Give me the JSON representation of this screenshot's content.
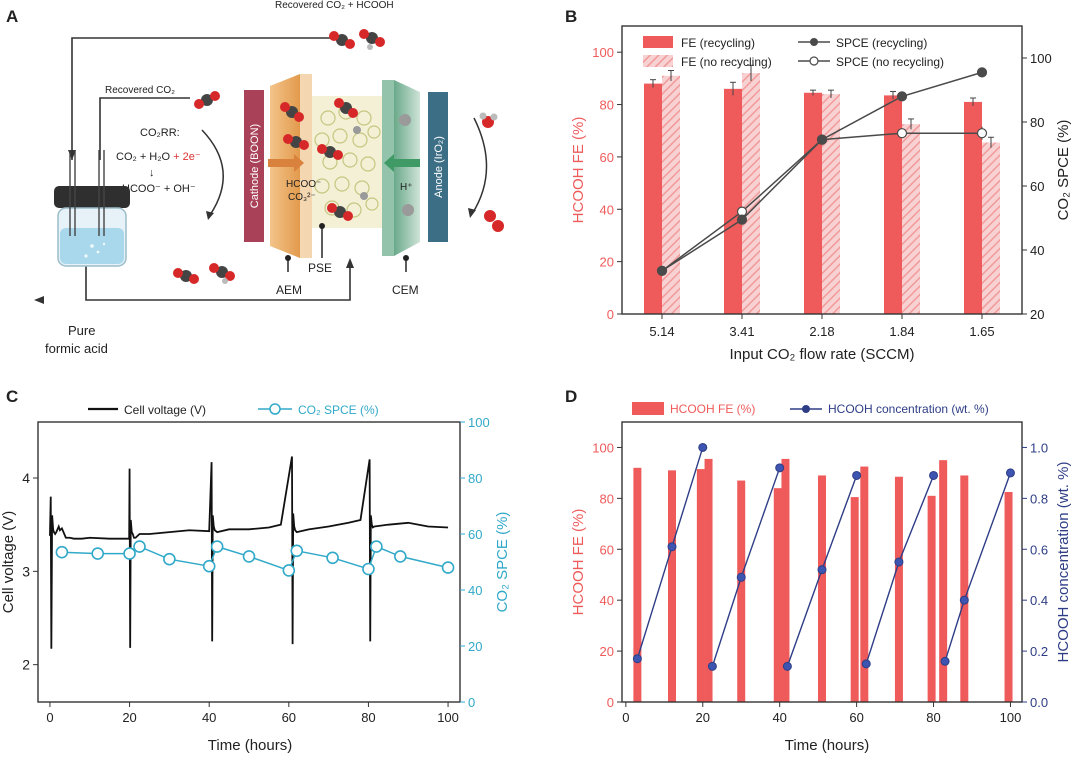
{
  "colors": {
    "red": "#ef5b5b",
    "pink": "#f4a8a8",
    "teal": "#31a9c9",
    "navy": "#2e3d86",
    "grey": "#4a4a4a",
    "cathode": "#a94258",
    "anode": "#3c6f86",
    "orange": "#e9a35a",
    "green": "#5aa36f"
  },
  "panelA": {
    "letter": "A",
    "recovered_co2_hcooh": "Recovered CO₂ + HCOOH",
    "recovered_co2": "Recovered CO₂",
    "co2rr_title": "CO₂RR:",
    "eq_left": "CO₂ + H₂O",
    "eq_plus": " + 2e⁻",
    "eq_arrow": "↓",
    "eq_right": "HCOO⁻ + OH⁻",
    "cathode": "Cathode (BOON)",
    "anode": "Anode (IrO₂)",
    "hcoo": "HCOO⁻",
    "co3": "CO₃²⁻",
    "hplus": "H⁺",
    "aem": "AEM",
    "pse": "PSE",
    "cem": "CEM",
    "pure_line1": "Pure",
    "pure_line2": "formic acid"
  },
  "chart_data": [
    {
      "panel": "B",
      "type": "bar",
      "categories": [
        "5.14",
        "3.41",
        "2.18",
        "1.84",
        "1.65"
      ],
      "xlabel": "Input CO₂ flow rate (SCCM)",
      "ylabel": "HCOOH FE (%)",
      "y2label": "CO₂ SPCE (%)",
      "ylim": [
        0,
        110
      ],
      "y2lim": [
        20,
        110
      ],
      "yticks": [
        "0",
        "20",
        "40",
        "60",
        "80",
        "100"
      ],
      "y2ticks": [
        "20",
        "40",
        "60",
        "80",
        "100"
      ],
      "legend": [
        "FE (recycling)",
        "FE (no recycling)",
        "SPCE (recycling)",
        "SPCE (no recycling)"
      ],
      "legend_position": "top",
      "series": [
        {
          "name": "FE (recycling)",
          "kind": "bar",
          "values": [
            88,
            86,
            84.5,
            83.5,
            81
          ],
          "errors": [
            1.5,
            2.5,
            1,
            1.5,
            1.5
          ]
        },
        {
          "name": "FE (no recycling)",
          "kind": "bar-hatched",
          "values": [
            91,
            92,
            84,
            72.5,
            65.5
          ],
          "errors": [
            2,
            3,
            1.5,
            2,
            2
          ]
        },
        {
          "name": "SPCE (recycling)",
          "kind": "line",
          "axis": "right",
          "values": [
            33.5,
            49.5,
            74.5,
            88,
            95.5
          ],
          "errors": [
            0.5,
            1,
            1,
            1,
            1.5
          ]
        },
        {
          "name": "SPCE (no recycling)",
          "kind": "line",
          "axis": "right",
          "values": [
            33.5,
            52,
            74.5,
            76.5,
            76.5
          ],
          "errors": [
            0.5,
            1,
            1,
            1.5,
            2
          ]
        }
      ]
    },
    {
      "panel": "C",
      "type": "line",
      "xlabel": "Time (hours)",
      "ylabel": "Cell voltage (V)",
      "y2label": "CO₂ SPCE (%)",
      "xlim": [
        -3,
        103
      ],
      "ylim": [
        1.6,
        4.6
      ],
      "y2lim": [
        0,
        100
      ],
      "xticks": [
        "0",
        "20",
        "40",
        "60",
        "80",
        "100"
      ],
      "yticks": [
        "2",
        "3",
        "4"
      ],
      "y2ticks": [
        "0",
        "20",
        "40",
        "60",
        "80",
        "100"
      ],
      "legend": [
        "Cell voltage (V)",
        "CO₂ SPCE (%)"
      ],
      "legend_position": "top",
      "series": [
        {
          "name": "Cell voltage (V)",
          "axis": "left",
          "x": [
            0,
            0.2,
            0.35,
            0.55,
            0.8,
            1.0,
            1.3,
            1.6,
            2.2,
            2.5,
            3,
            4,
            5,
            6,
            8,
            10,
            15,
            19.9,
            20.0,
            20.15,
            20.3,
            20.55,
            20.8,
            21.1,
            21.5,
            22.5,
            25,
            30,
            35,
            40,
            40.6,
            40.75,
            40.9,
            41.15,
            41.4,
            42,
            45,
            50,
            55,
            58,
            60.8,
            60.95,
            61.1,
            61.35,
            61.6,
            62,
            65,
            70,
            75,
            78,
            80.3,
            80.45,
            80.6,
            80.85,
            81.1,
            81.5,
            85,
            90,
            95,
            100
          ],
          "y": [
            3.38,
            3.8,
            2.17,
            3.6,
            3.45,
            3.42,
            3.4,
            3.42,
            3.48,
            3.44,
            3.46,
            3.36,
            3.36,
            3.35,
            3.35,
            3.36,
            3.35,
            3.35,
            4.1,
            2.18,
            3.55,
            3.42,
            3.4,
            3.36,
            3.36,
            3.4,
            3.4,
            3.42,
            3.44,
            3.43,
            4.17,
            2.25,
            3.6,
            3.48,
            3.44,
            3.42,
            3.45,
            3.45,
            3.47,
            3.5,
            4.23,
            2.22,
            3.62,
            3.48,
            3.44,
            3.42,
            3.45,
            3.48,
            3.52,
            3.55,
            4.2,
            2.25,
            3.6,
            3.5,
            3.47,
            3.48,
            3.5,
            3.52,
            3.48,
            3.47
          ]
        },
        {
          "name": "CO₂ SPCE (%)",
          "axis": "right",
          "x": [
            3,
            12,
            20,
            22.5,
            30,
            40,
            42,
            50,
            60,
            62,
            71,
            80,
            82,
            88,
            100
          ],
          "y": [
            53.5,
            53,
            53,
            55.5,
            51,
            48.5,
            55.5,
            52,
            47,
            54,
            51.5,
            47.5,
            55.5,
            52,
            48
          ]
        }
      ]
    },
    {
      "panel": "D",
      "type": "bar",
      "xlabel": "Time (hours)",
      "ylabel": "HCOOH FE (%)",
      "y2label": "HCOOH concentration (wt. %)",
      "xlim": [
        -1,
        103
      ],
      "ylim": [
        0,
        110
      ],
      "y2lim": [
        0,
        1.1
      ],
      "xticks": [
        "0",
        "20",
        "40",
        "60",
        "80",
        "100"
      ],
      "yticks": [
        "0",
        "20",
        "40",
        "60",
        "80",
        "100"
      ],
      "y2ticks": [
        "0.0",
        "0.2",
        "0.4",
        "0.6",
        "0.8",
        "1.0"
      ],
      "legend": [
        "HCOOH FE (%)",
        "HCOOH concentration (wt. %)"
      ],
      "legend_position": "top",
      "series": [
        {
          "name": "HCOOH FE (%)",
          "kind": "bar",
          "x": [
            3,
            12,
            19.5,
            21.5,
            30,
            39.5,
            41.5,
            51,
            59.5,
            62,
            71,
            79.5,
            82.5,
            88,
            99.5
          ],
          "values": [
            92,
            91,
            91.5,
            95.5,
            87,
            84,
            95.5,
            89,
            80.5,
            92.5,
            88.5,
            81,
            95,
            89,
            82.5
          ]
        },
        {
          "name": "HCOOH concentration (wt. %)",
          "kind": "line",
          "segments": [
            {
              "x": [
                3,
                12,
                20
              ],
              "y": [
                0.17,
                0.61,
                1.0
              ]
            },
            {
              "x": [
                22.5,
                30,
                40
              ],
              "y": [
                0.14,
                0.49,
                0.92
              ]
            },
            {
              "x": [
                42,
                51,
                60
              ],
              "y": [
                0.14,
                0.52,
                0.89
              ]
            },
            {
              "x": [
                62.5,
                71,
                80
              ],
              "y": [
                0.15,
                0.55,
                0.89
              ]
            },
            {
              "x": [
                83,
                88,
                100
              ],
              "y": [
                0.16,
                0.4,
                0.9
              ]
            }
          ]
        }
      ]
    }
  ]
}
